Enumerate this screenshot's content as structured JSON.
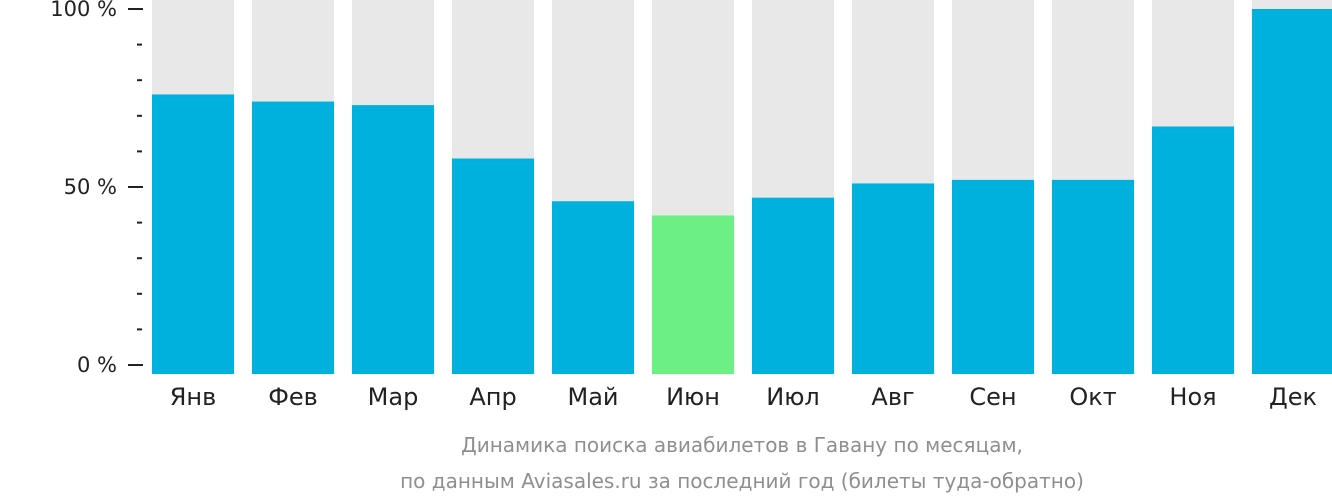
{
  "chart_data": {
    "type": "bar",
    "categories": [
      "Янв",
      "Фев",
      "Мар",
      "Апр",
      "Май",
      "Июн",
      "Июл",
      "Авг",
      "Сен",
      "Окт",
      "Ноя",
      "Дек"
    ],
    "values": [
      76,
      74,
      73,
      58,
      46,
      42,
      47,
      51,
      52,
      52,
      67,
      100
    ],
    "highlight_index": 5,
    "ylim": [
      0,
      100
    ],
    "y_ticks": [
      {
        "value": 100,
        "label": "100 %"
      },
      {
        "value": 50,
        "label": "50 %"
      },
      {
        "value": 0,
        "label": "0 %"
      }
    ],
    "minor_tick_step": 10,
    "caption_line1": "Динамика поиска авиабилетов в Гавану по месяцам,",
    "caption_line2": "по данным Aviasales.ru за последний год (билеты туда-обратно)",
    "grid": false,
    "legend": "none",
    "colors": {
      "bar": "#00b0dd",
      "highlight": "#6cf083",
      "background_bar": "#e8e8e8",
      "axis": "#222222",
      "caption": "#8f8f8f"
    }
  }
}
